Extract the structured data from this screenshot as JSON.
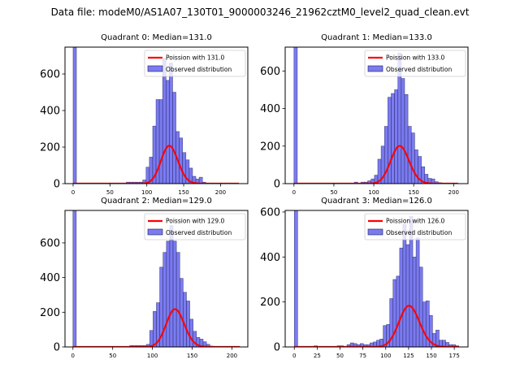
{
  "suptitle": "Data file: modeM0/AS1A07_130T01_9000003246_21962cztM0_level2_quad_clean.evt",
  "colors": {
    "bar_fill": "#7b7bf0",
    "bar_edge": "#1c1c5a",
    "poisson": "#ff0000",
    "axis": "#000000"
  },
  "chart_data": [
    {
      "type": "bar",
      "title": "Quadrant 0: Median=131.0",
      "xlabel": "",
      "ylabel": "",
      "xlim": [
        -11,
        237
      ],
      "ylim": [
        0,
        747
      ],
      "xticks": [
        0,
        50,
        100,
        150,
        200
      ],
      "yticks": [
        0,
        200,
        400,
        600
      ],
      "legend": {
        "position": "top-right",
        "entries": [
          "Poission with 131.0",
          "Observed distribution"
        ]
      },
      "poisson_mean": 131.0,
      "poisson_scale": 5950,
      "bin_width": 4.5,
      "bins": [
        [
          0,
          760
        ],
        [
          72,
          8
        ],
        [
          76.5,
          8
        ],
        [
          81,
          8
        ],
        [
          85.5,
          8
        ],
        [
          90,
          8
        ],
        [
          94.5,
          20
        ],
        [
          99,
          90
        ],
        [
          103.5,
          145
        ],
        [
          108,
          315
        ],
        [
          112.5,
          460
        ],
        [
          117,
          460
        ],
        [
          121.5,
          685
        ],
        [
          126,
          565
        ],
        [
          130.5,
          660
        ],
        [
          135,
          500
        ],
        [
          139.5,
          285
        ],
        [
          144,
          250
        ],
        [
          148.5,
          170
        ],
        [
          153,
          130
        ],
        [
          157.5,
          85
        ],
        [
          162,
          40
        ],
        [
          166.5,
          25
        ],
        [
          171,
          35
        ],
        [
          175.5,
          8
        ],
        [
          180,
          3
        ],
        [
          184.5,
          2
        ],
        [
          189,
          1
        ],
        [
          193.5,
          1
        ],
        [
          198,
          1
        ],
        [
          202.5,
          1
        ],
        [
          207,
          1
        ],
        [
          211.5,
          1
        ],
        [
          216,
          1
        ],
        [
          220.5,
          1
        ]
      ]
    },
    {
      "type": "bar",
      "title": "Quadrant 1: Median=133.0",
      "xlabel": "",
      "ylabel": "",
      "xlim": [
        -11,
        218
      ],
      "ylim": [
        0,
        727
      ],
      "xticks": [
        0,
        50,
        100,
        150,
        200
      ],
      "yticks": [
        0,
        200,
        400,
        600
      ],
      "legend": {
        "position": "top-right",
        "entries": [
          "Poission with 133.0",
          "Observed distribution"
        ]
      },
      "poisson_mean": 133.0,
      "poisson_scale": 5800,
      "bin_width": 4.2,
      "bins": [
        [
          0,
          740
        ],
        [
          75.6,
          8
        ],
        [
          84,
          8
        ],
        [
          88.2,
          8
        ],
        [
          92.4,
          15
        ],
        [
          96.6,
          25
        ],
        [
          100.8,
          45
        ],
        [
          105,
          130
        ],
        [
          109.2,
          200
        ],
        [
          113.4,
          305
        ],
        [
          117.6,
          460
        ],
        [
          121.8,
          480
        ],
        [
          126,
          500
        ],
        [
          130.2,
          695
        ],
        [
          134.4,
          560
        ],
        [
          138.6,
          475
        ],
        [
          142.8,
          305
        ],
        [
          147,
          270
        ],
        [
          151.2,
          180
        ],
        [
          155.4,
          145
        ],
        [
          159.6,
          90
        ],
        [
          163.8,
          50
        ],
        [
          168,
          28
        ],
        [
          172.2,
          25
        ],
        [
          176.4,
          10
        ],
        [
          180.6,
          5
        ],
        [
          184.8,
          3
        ],
        [
          189,
          2
        ],
        [
          193.2,
          2
        ],
        [
          197.4,
          2
        ],
        [
          201.6,
          2
        ]
      ]
    },
    {
      "type": "bar",
      "title": "Quadrant 2: Median=129.0",
      "xlabel": "",
      "ylabel": "",
      "xlim": [
        -10,
        220
      ],
      "ylim": [
        0,
        787
      ],
      "xticks": [
        0,
        50,
        100,
        150,
        200
      ],
      "yticks": [
        0,
        200,
        400,
        600
      ],
      "legend": {
        "position": "top-right",
        "entries": [
          "Poission with 129.0",
          "Observed distribution"
        ]
      },
      "poisson_mean": 129.0,
      "poisson_scale": 6200,
      "bin_width": 4.2,
      "bins": [
        [
          0,
          790
        ],
        [
          54.6,
          2
        ],
        [
          71.4,
          8
        ],
        [
          75.6,
          8
        ],
        [
          79.8,
          8
        ],
        [
          84,
          8
        ],
        [
          88.2,
          8
        ],
        [
          92.4,
          15
        ],
        [
          96.6,
          95
        ],
        [
          100.8,
          205
        ],
        [
          105,
          255
        ],
        [
          109.2,
          460
        ],
        [
          113.4,
          545
        ],
        [
          117.6,
          610
        ],
        [
          121.8,
          700
        ],
        [
          126,
          610
        ],
        [
          130.2,
          545
        ],
        [
          134.4,
          395
        ],
        [
          138.6,
          315
        ],
        [
          142.8,
          265
        ],
        [
          147,
          160
        ],
        [
          151.2,
          90
        ],
        [
          155.4,
          55
        ],
        [
          159.6,
          45
        ],
        [
          163.8,
          30
        ],
        [
          168,
          15
        ],
        [
          172.2,
          5
        ],
        [
          176.4,
          3
        ],
        [
          180.6,
          2
        ],
        [
          184.8,
          2
        ],
        [
          189,
          2
        ],
        [
          193.2,
          2
        ],
        [
          197.4,
          2
        ],
        [
          201.6,
          2
        ],
        [
          205.8,
          2
        ]
      ]
    },
    {
      "type": "bar",
      "title": "Quadrant 3: Median=126.0",
      "xlabel": "",
      "ylabel": "",
      "xlim": [
        -10,
        190
      ],
      "ylim": [
        0,
        607
      ],
      "xticks": [
        0,
        25,
        50,
        75,
        100,
        125,
        150,
        175
      ],
      "yticks": [
        0,
        200,
        400,
        600
      ],
      "legend": {
        "position": "top-right",
        "entries": [
          "Poission with 126.0",
          "Observed distribution"
        ]
      },
      "poisson_mean": 126.0,
      "poisson_scale": 5150,
      "bin_width": 3.6,
      "bins": [
        [
          0,
          610
        ],
        [
          21.6,
          5
        ],
        [
          28.8,
          2
        ],
        [
          46.8,
          5
        ],
        [
          50.4,
          5
        ],
        [
          57.6,
          10
        ],
        [
          61.2,
          18
        ],
        [
          64.8,
          15
        ],
        [
          68.4,
          10
        ],
        [
          72,
          15
        ],
        [
          75.6,
          10
        ],
        [
          79.2,
          10
        ],
        [
          82.8,
          18
        ],
        [
          86.4,
          22
        ],
        [
          90,
          30
        ],
        [
          93.6,
          35
        ],
        [
          97.2,
          95
        ],
        [
          100.8,
          100
        ],
        [
          104.4,
          215
        ],
        [
          108,
          300
        ],
        [
          111.6,
          315
        ],
        [
          115.2,
          440
        ],
        [
          118.8,
          545
        ],
        [
          122.4,
          455
        ],
        [
          126,
          580
        ],
        [
          129.6,
          400
        ],
        [
          133.2,
          485
        ],
        [
          136.8,
          355
        ],
        [
          140.4,
          200
        ],
        [
          144,
          205
        ],
        [
          147.6,
          140
        ],
        [
          151.2,
          60
        ],
        [
          154.8,
          75
        ],
        [
          158.4,
          30
        ],
        [
          162,
          30
        ],
        [
          165.6,
          20
        ],
        [
          169.2,
          10
        ],
        [
          172.8,
          10
        ],
        [
          176.4,
          5
        ]
      ]
    }
  ]
}
